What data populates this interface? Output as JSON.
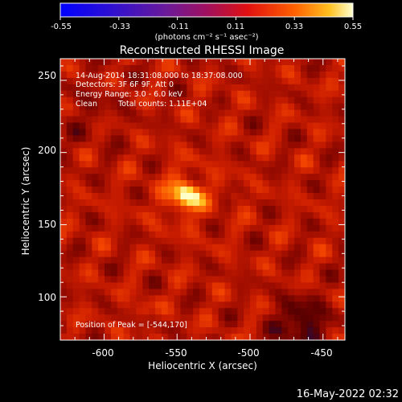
{
  "title": "Reconstructed RHESSI Image",
  "colorbar": {
    "ticks": [
      "-0.55",
      "-0.33",
      "-0.11",
      "0.11",
      "0.33",
      "0.55"
    ],
    "unit_label": "(photons cm⁻² s⁻¹ asec⁻²)",
    "range": [
      -0.55,
      0.55
    ]
  },
  "axes": {
    "xlabel": "Heliocentric X (arcsec)",
    "ylabel": "Heliocentric Y (arcsec)",
    "xticks": [
      "-600",
      "-550",
      "-500",
      "-450"
    ],
    "yticks": [
      "250",
      "200",
      "150",
      "100"
    ],
    "xlim": [
      -630,
      -435
    ],
    "ylim": [
      70,
      265
    ]
  },
  "info": {
    "time": "14-Aug-2014 18:31:08.000 to 18:37:08.000",
    "detectors": "Detectors: 3F 6F 9F, Att 0",
    "energy": "Energy Range: 3.0 - 6.0 keV",
    "clean": "Clean",
    "counts": "Total counts: 1.11E+04"
  },
  "peak": "Position of Peak = [-544,170]",
  "footer_date": "16-May-2022 02:32",
  "image": {
    "peak_x": -544,
    "peak_y": 170
  }
}
